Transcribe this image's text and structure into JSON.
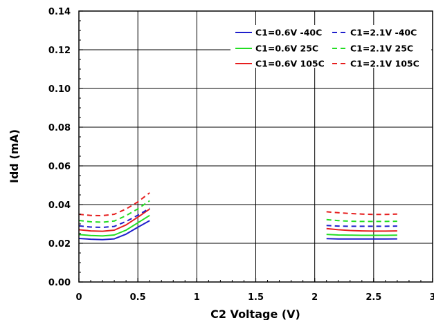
{
  "chart_data": {
    "type": "line",
    "title": "",
    "xlabel": "C2 Voltage (V)",
    "ylabel": "Idd (mA)",
    "xlim": [
      0,
      3
    ],
    "ylim": [
      0,
      0.14
    ],
    "x_ticks": [
      "0",
      "0.5",
      "1",
      "1.5",
      "2",
      "2.5",
      "3"
    ],
    "y_ticks": [
      "0.00",
      "0.02",
      "0.04",
      "0.06",
      "0.08",
      "0.10",
      "0.12",
      "0.14"
    ],
    "grid": true,
    "legend_position": "top-right",
    "series": [
      {
        "name": "C1=0.6V -40C",
        "color": "#1f1fcc",
        "dash": "solid",
        "segments": [
          [
            [
              0,
              0.0225
            ],
            [
              0.1,
              0.0221
            ],
            [
              0.2,
              0.0219
            ],
            [
              0.3,
              0.0223
            ],
            [
              0.4,
              0.0247
            ],
            [
              0.5,
              0.0283
            ],
            [
              0.6,
              0.0317
            ]
          ],
          [
            [
              2.1,
              0.0224
            ],
            [
              2.2,
              0.0222
            ],
            [
              2.3,
              0.0222
            ],
            [
              2.4,
              0.0222
            ],
            [
              2.5,
              0.0222
            ],
            [
              2.6,
              0.0222
            ],
            [
              2.7,
              0.0223
            ]
          ]
        ]
      },
      {
        "name": "C1=0.6V 25C",
        "color": "#22dd22",
        "dash": "solid",
        "segments": [
          [
            [
              0,
              0.0245
            ],
            [
              0.1,
              0.024
            ],
            [
              0.2,
              0.0238
            ],
            [
              0.3,
              0.0243
            ],
            [
              0.4,
              0.0268
            ],
            [
              0.5,
              0.0306
            ],
            [
              0.6,
              0.0344
            ]
          ],
          [
            [
              2.1,
              0.0246
            ],
            [
              2.2,
              0.0243
            ],
            [
              2.3,
              0.0242
            ],
            [
              2.4,
              0.0241
            ],
            [
              2.5,
              0.0241
            ],
            [
              2.6,
              0.0241
            ],
            [
              2.7,
              0.0242
            ]
          ]
        ]
      },
      {
        "name": "C1=0.6V 105C",
        "color": "#e61e1e",
        "dash": "solid",
        "segments": [
          [
            [
              0,
              0.027
            ],
            [
              0.1,
              0.0264
            ],
            [
              0.2,
              0.0262
            ],
            [
              0.3,
              0.0268
            ],
            [
              0.4,
              0.0295
            ],
            [
              0.5,
              0.0335
            ],
            [
              0.6,
              0.0377
            ]
          ],
          [
            [
              2.1,
              0.0276
            ],
            [
              2.2,
              0.027
            ],
            [
              2.3,
              0.0266
            ],
            [
              2.4,
              0.0264
            ],
            [
              2.5,
              0.0263
            ],
            [
              2.6,
              0.0263
            ],
            [
              2.7,
              0.0264
            ]
          ]
        ]
      },
      {
        "name": "C1=2.1V -40C",
        "color": "#1f1fcc",
        "dash": "dashed",
        "segments": [
          [
            [
              0,
              0.029
            ],
            [
              0.1,
              0.0284
            ],
            [
              0.2,
              0.0282
            ],
            [
              0.3,
              0.0287
            ],
            [
              0.4,
              0.0313
            ],
            [
              0.5,
              0.0345
            ],
            [
              0.6,
              0.0381
            ]
          ],
          [
            [
              2.1,
              0.0292
            ],
            [
              2.2,
              0.0289
            ],
            [
              2.3,
              0.0288
            ],
            [
              2.4,
              0.0288
            ],
            [
              2.5,
              0.0288
            ],
            [
              2.6,
              0.0288
            ],
            [
              2.7,
              0.0289
            ]
          ]
        ]
      },
      {
        "name": "C1=2.1V 25C",
        "color": "#22dd22",
        "dash": "dashed",
        "segments": [
          [
            [
              0,
              0.0318
            ],
            [
              0.1,
              0.0311
            ],
            [
              0.2,
              0.0309
            ],
            [
              0.3,
              0.0315
            ],
            [
              0.4,
              0.0343
            ],
            [
              0.5,
              0.0378
            ],
            [
              0.6,
              0.042
            ]
          ],
          [
            [
              2.1,
              0.0322
            ],
            [
              2.2,
              0.0317
            ],
            [
              2.3,
              0.0314
            ],
            [
              2.4,
              0.0313
            ],
            [
              2.5,
              0.0313
            ],
            [
              2.6,
              0.0313
            ],
            [
              2.7,
              0.0314
            ]
          ]
        ]
      },
      {
        "name": "C1=2.1V 105C",
        "color": "#e61e1e",
        "dash": "dashed",
        "segments": [
          [
            [
              0,
              0.035
            ],
            [
              0.1,
              0.0344
            ],
            [
              0.2,
              0.0343
            ],
            [
              0.3,
              0.035
            ],
            [
              0.4,
              0.0377
            ],
            [
              0.5,
              0.0414
            ],
            [
              0.6,
              0.0461
            ]
          ],
          [
            [
              2.1,
              0.0363
            ],
            [
              2.2,
              0.0358
            ],
            [
              2.3,
              0.0354
            ],
            [
              2.4,
              0.0351
            ],
            [
              2.5,
              0.0349
            ],
            [
              2.6,
              0.0349
            ],
            [
              2.7,
              0.0351
            ]
          ]
        ]
      }
    ]
  }
}
